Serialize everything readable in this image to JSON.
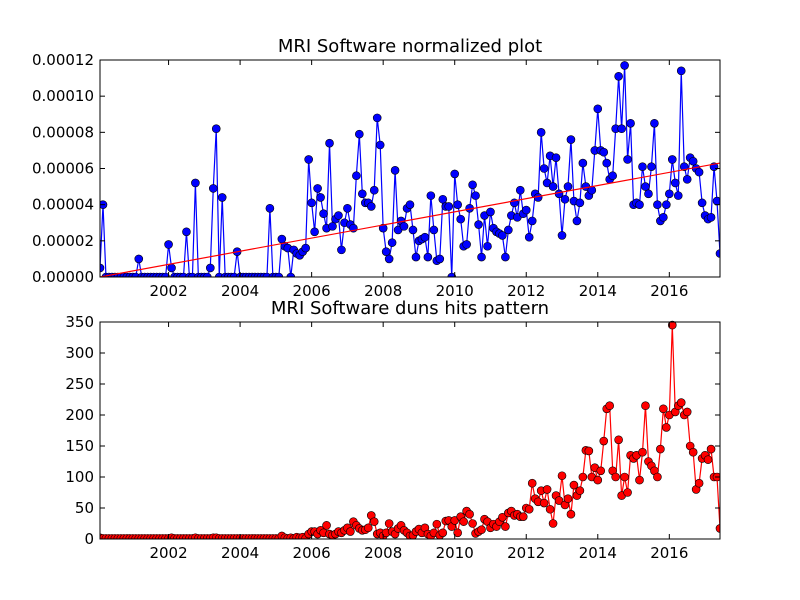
{
  "chart_data": [
    {
      "type": "line",
      "title": "MRI Software normalized plot",
      "xlim": [
        2000.083,
        2017.417
      ],
      "xticks": [
        2002,
        2004,
        2006,
        2008,
        2010,
        2012,
        2014,
        2016
      ],
      "ylim": [
        0,
        0.00012
      ],
      "yticks": [
        {
          "value": 0,
          "label": "0.00000"
        },
        {
          "value": 2e-05,
          "label": "0.00002"
        },
        {
          "value": 4e-05,
          "label": "0.00004"
        },
        {
          "value": 6e-05,
          "label": "0.00006"
        },
        {
          "value": 8e-05,
          "label": "0.00008"
        },
        {
          "value": 0.0001,
          "label": "0.00010"
        },
        {
          "value": 0.00012,
          "label": "0.00012"
        }
      ],
      "series": [
        {
          "color": "#0000ff",
          "marker": true,
          "x": [
            2000.083,
            2000.167,
            2000.25,
            2000.333,
            2000.417,
            2000.5,
            2000.583,
            2000.667,
            2000.75,
            2000.833,
            2000.917,
            2001,
            2001.083,
            2001.167,
            2001.25,
            2001.333,
            2001.417,
            2001.5,
            2001.583,
            2001.667,
            2001.75,
            2001.833,
            2001.917,
            2002,
            2002.083,
            2002.167,
            2002.25,
            2002.333,
            2002.417,
            2002.5,
            2002.583,
            2002.667,
            2002.75,
            2002.833,
            2002.917,
            2003,
            2003.083,
            2003.167,
            2003.25,
            2003.333,
            2003.417,
            2003.5,
            2003.583,
            2003.667,
            2003.75,
            2003.833,
            2003.917,
            2004,
            2004.083,
            2004.167,
            2004.25,
            2004.333,
            2004.417,
            2004.5,
            2004.583,
            2004.667,
            2004.75,
            2004.833,
            2004.917,
            2005,
            2005.083,
            2005.167,
            2005.25,
            2005.333,
            2005.417,
            2005.5,
            2005.583,
            2005.667,
            2005.75,
            2005.833,
            2005.917,
            2006,
            2006.083,
            2006.167,
            2006.25,
            2006.333,
            2006.417,
            2006.5,
            2006.583,
            2006.667,
            2006.75,
            2006.833,
            2006.917,
            2007,
            2007.083,
            2007.167,
            2007.25,
            2007.333,
            2007.417,
            2007.5,
            2007.583,
            2007.667,
            2007.75,
            2007.833,
            2007.917,
            2008,
            2008.083,
            2008.167,
            2008.25,
            2008.333,
            2008.417,
            2008.5,
            2008.583,
            2008.667,
            2008.75,
            2008.833,
            2008.917,
            2009,
            2009.083,
            2009.167,
            2009.25,
            2009.333,
            2009.417,
            2009.5,
            2009.583,
            2009.667,
            2009.75,
            2009.833,
            2009.917,
            2010,
            2010.083,
            2010.167,
            2010.25,
            2010.333,
            2010.417,
            2010.5,
            2010.583,
            2010.667,
            2010.75,
            2010.833,
            2010.917,
            2011,
            2011.083,
            2011.167,
            2011.25,
            2011.333,
            2011.417,
            2011.5,
            2011.583,
            2011.667,
            2011.75,
            2011.833,
            2011.917,
            2012,
            2012.083,
            2012.167,
            2012.25,
            2012.333,
            2012.417,
            2012.5,
            2012.583,
            2012.667,
            2012.75,
            2012.833,
            2012.917,
            2013,
            2013.083,
            2013.167,
            2013.25,
            2013.333,
            2013.417,
            2013.5,
            2013.583,
            2013.667,
            2013.75,
            2013.833,
            2013.917,
            2014,
            2014.083,
            2014.167,
            2014.25,
            2014.333,
            2014.417,
            2014.5,
            2014.583,
            2014.667,
            2014.75,
            2014.833,
            2014.917,
            2015,
            2015.083,
            2015.167,
            2015.25,
            2015.333,
            2015.417,
            2015.5,
            2015.583,
            2015.667,
            2015.75,
            2015.833,
            2015.917,
            2016,
            2016.083,
            2016.167,
            2016.25,
            2016.333,
            2016.417,
            2016.5,
            2016.583,
            2016.667,
            2016.75,
            2016.833,
            2016.917,
            2017,
            2017.083,
            2017.167,
            2017.25,
            2017.333,
            2017.417
          ],
          "values": [
            5e-06,
            4e-05,
            0,
            0,
            0,
            0,
            0,
            0,
            0,
            0,
            0,
            0,
            0,
            1e-05,
            0,
            0,
            0,
            0,
            0,
            0,
            0,
            0,
            0,
            1.8e-05,
            5e-06,
            0,
            0,
            0,
            0,
            2.5e-05,
            0,
            0,
            5.2e-05,
            0,
            0,
            0,
            0,
            5e-06,
            4.9e-05,
            8.2e-05,
            0,
            4.4e-05,
            0,
            0,
            0,
            0,
            1.4e-05,
            0,
            0,
            0,
            0,
            0,
            0,
            0,
            0,
            0,
            0,
            3.8e-05,
            0,
            0,
            0,
            2.1e-05,
            1.7e-05,
            1.6e-05,
            0,
            1.5e-05,
            1.3e-05,
            1.2e-05,
            1.4e-05,
            1.6e-05,
            6.5e-05,
            4.1e-05,
            2.5e-05,
            4.9e-05,
            4.4e-05,
            3.5e-05,
            2.7e-05,
            7.4e-05,
            2.8e-05,
            3.2e-05,
            3.4e-05,
            1.5e-05,
            3e-05,
            3.8e-05,
            2.9e-05,
            2.7e-05,
            5.6e-05,
            7.9e-05,
            4.6e-05,
            4.1e-05,
            4.1e-05,
            3.9e-05,
            4.8e-05,
            8.8e-05,
            7.3e-05,
            2.7e-05,
            1.4e-05,
            1e-05,
            1.9e-05,
            5.9e-05,
            2.6e-05,
            3.1e-05,
            2.8e-05,
            3.8e-05,
            4e-05,
            2.6e-05,
            1.1e-05,
            2e-05,
            2.1e-05,
            2.2e-05,
            1.1e-05,
            4.5e-05,
            2.6e-05,
            9e-06,
            1e-05,
            4.3e-05,
            3.9e-05,
            3.9e-05,
            0,
            5.7e-05,
            4e-05,
            3.2e-05,
            1.7e-05,
            1.8e-05,
            3.8e-05,
            5.1e-05,
            4.5e-05,
            2.9e-05,
            1.1e-05,
            3.4e-05,
            1.7e-05,
            3.6e-05,
            2.7e-05,
            2.5e-05,
            2.4e-05,
            2.3e-05,
            1.1e-05,
            2.6e-05,
            3.4e-05,
            4.1e-05,
            3.3e-05,
            4.8e-05,
            3.5e-05,
            3.7e-05,
            2.2e-05,
            3.1e-05,
            4.6e-05,
            4.4e-05,
            8e-05,
            6e-05,
            5.2e-05,
            6.7e-05,
            5e-05,
            6.6e-05,
            4.6e-05,
            2.3e-05,
            4.3e-05,
            5e-05,
            7.6e-05,
            4.2e-05,
            3.1e-05,
            4.1e-05,
            6.3e-05,
            5e-05,
            4.5e-05,
            4.8e-05,
            7e-05,
            9.3e-05,
            7e-05,
            6.9e-05,
            6.3e-05,
            5.4e-05,
            5.6e-05,
            8.2e-05,
            0.000111,
            8.2e-05,
            0.000117,
            6.5e-05,
            8.5e-05,
            4e-05,
            4.1e-05,
            4e-05,
            6.1e-05,
            5e-05,
            4.6e-05,
            6.1e-05,
            8.5e-05,
            4e-05,
            3.1e-05,
            3.3e-05,
            4e-05,
            4.6e-05,
            6.5e-05,
            5.2e-05,
            4.5e-05,
            0.000114,
            6.1e-05,
            5.4e-05,
            6.6e-05,
            6.4e-05,
            6e-05,
            5.8e-05,
            4.1e-05,
            3.4e-05,
            3.2e-05,
            3.3e-05,
            6.1e-05,
            4.2e-05,
            1.3e-05
          ]
        },
        {
          "color": "#ff0000",
          "marker": false,
          "x": [
            2000.083,
            2017.417
          ],
          "values": [
            0,
            6.3e-05
          ]
        }
      ]
    },
    {
      "type": "line",
      "title": "MRI Software duns hits pattern",
      "xlim": [
        2000.083,
        2017.417
      ],
      "xticks": [
        2002,
        2004,
        2006,
        2008,
        2010,
        2012,
        2014,
        2016
      ],
      "ylim": [
        0,
        350
      ],
      "yticks": [
        0,
        50,
        100,
        150,
        200,
        250,
        300,
        350
      ],
      "series": [
        {
          "color": "#ff0000",
          "marker": true,
          "x": [
            2000.083,
            2000.167,
            2000.25,
            2000.333,
            2000.417,
            2000.5,
            2000.583,
            2000.667,
            2000.75,
            2000.833,
            2000.917,
            2001,
            2001.083,
            2001.167,
            2001.25,
            2001.333,
            2001.417,
            2001.5,
            2001.583,
            2001.667,
            2001.75,
            2001.833,
            2001.917,
            2002,
            2002.083,
            2002.167,
            2002.25,
            2002.333,
            2002.417,
            2002.5,
            2002.583,
            2002.667,
            2002.75,
            2002.833,
            2002.917,
            2003,
            2003.083,
            2003.167,
            2003.25,
            2003.333,
            2003.417,
            2003.5,
            2003.583,
            2003.667,
            2003.75,
            2003.833,
            2003.917,
            2004,
            2004.083,
            2004.167,
            2004.25,
            2004.333,
            2004.417,
            2004.5,
            2004.583,
            2004.667,
            2004.75,
            2004.833,
            2004.917,
            2005,
            2005.083,
            2005.167,
            2005.25,
            2005.333,
            2005.417,
            2005.5,
            2005.583,
            2005.667,
            2005.75,
            2005.833,
            2005.917,
            2006,
            2006.083,
            2006.167,
            2006.25,
            2006.333,
            2006.417,
            2006.5,
            2006.583,
            2006.667,
            2006.75,
            2006.833,
            2006.917,
            2007,
            2007.083,
            2007.167,
            2007.25,
            2007.333,
            2007.417,
            2007.5,
            2007.583,
            2007.667,
            2007.75,
            2007.833,
            2007.917,
            2008,
            2008.083,
            2008.167,
            2008.25,
            2008.333,
            2008.417,
            2008.5,
            2008.583,
            2008.667,
            2008.75,
            2008.833,
            2008.917,
            2009,
            2009.083,
            2009.167,
            2009.25,
            2009.333,
            2009.417,
            2009.5,
            2009.583,
            2009.667,
            2009.75,
            2009.833,
            2009.917,
            2010,
            2010.083,
            2010.167,
            2010.25,
            2010.333,
            2010.417,
            2010.5,
            2010.583,
            2010.667,
            2010.75,
            2010.833,
            2010.917,
            2011,
            2011.083,
            2011.167,
            2011.25,
            2011.333,
            2011.417,
            2011.5,
            2011.583,
            2011.667,
            2011.75,
            2011.833,
            2011.917,
            2012,
            2012.083,
            2012.167,
            2012.25,
            2012.333,
            2012.417,
            2012.5,
            2012.583,
            2012.667,
            2012.75,
            2012.833,
            2012.917,
            2013,
            2013.083,
            2013.167,
            2013.25,
            2013.333,
            2013.417,
            2013.5,
            2013.583,
            2013.667,
            2013.75,
            2013.833,
            2013.917,
            2014,
            2014.083,
            2014.167,
            2014.25,
            2014.333,
            2014.417,
            2014.5,
            2014.583,
            2014.667,
            2014.75,
            2014.833,
            2014.917,
            2015,
            2015.083,
            2015.167,
            2015.25,
            2015.333,
            2015.417,
            2015.5,
            2015.583,
            2015.667,
            2015.75,
            2015.833,
            2015.917,
            2016,
            2016.083,
            2016.167,
            2016.25,
            2016.333,
            2016.417,
            2016.5,
            2016.583,
            2016.667,
            2016.75,
            2016.833,
            2016.917,
            2017,
            2017.083,
            2017.167,
            2017.25,
            2017.333,
            2017.417
          ],
          "values": [
            2,
            1,
            1,
            1,
            1,
            1,
            1,
            1,
            1,
            1,
            1,
            1,
            1,
            1,
            1,
            1,
            1,
            1,
            1,
            1,
            1,
            1,
            1,
            1,
            2,
            1,
            1,
            1,
            1,
            1,
            1,
            1,
            2,
            1,
            1,
            1,
            1,
            1,
            2,
            2,
            1,
            1,
            1,
            1,
            1,
            1,
            1,
            1,
            1,
            1,
            1,
            1,
            1,
            1,
            1,
            1,
            1,
            1,
            1,
            1,
            1,
            5,
            2,
            1,
            2,
            1,
            3,
            2,
            3,
            1,
            8,
            12,
            12,
            8,
            14,
            10,
            22,
            8,
            6,
            8,
            12,
            10,
            14,
            18,
            12,
            28,
            22,
            17,
            14,
            15,
            18,
            38,
            28,
            8,
            10,
            5,
            10,
            25,
            12,
            8,
            17,
            22,
            14,
            10,
            5,
            6,
            12,
            16,
            10,
            18,
            8,
            5,
            10,
            24,
            6,
            10,
            29,
            30,
            20,
            30,
            10,
            36,
            28,
            45,
            40,
            25,
            9,
            12,
            15,
            32,
            28,
            18,
            24,
            20,
            28,
            35,
            20,
            42,
            45,
            38,
            40,
            36,
            36,
            50,
            48,
            90,
            65,
            60,
            78,
            58,
            80,
            48,
            25,
            70,
            62,
            102,
            55,
            65,
            40,
            87,
            70,
            78,
            100,
            143,
            142,
            100,
            115,
            95,
            110,
            158,
            210,
            215,
            110,
            100,
            160,
            70,
            100,
            75,
            135,
            130,
            135,
            95,
            140,
            215,
            125,
            118,
            110,
            100,
            145,
            210,
            180,
            200,
            345,
            205,
            215,
            220,
            200,
            205,
            150,
            140,
            80,
            90,
            130,
            135,
            128,
            145,
            100,
            100,
            17
          ]
        }
      ]
    }
  ]
}
